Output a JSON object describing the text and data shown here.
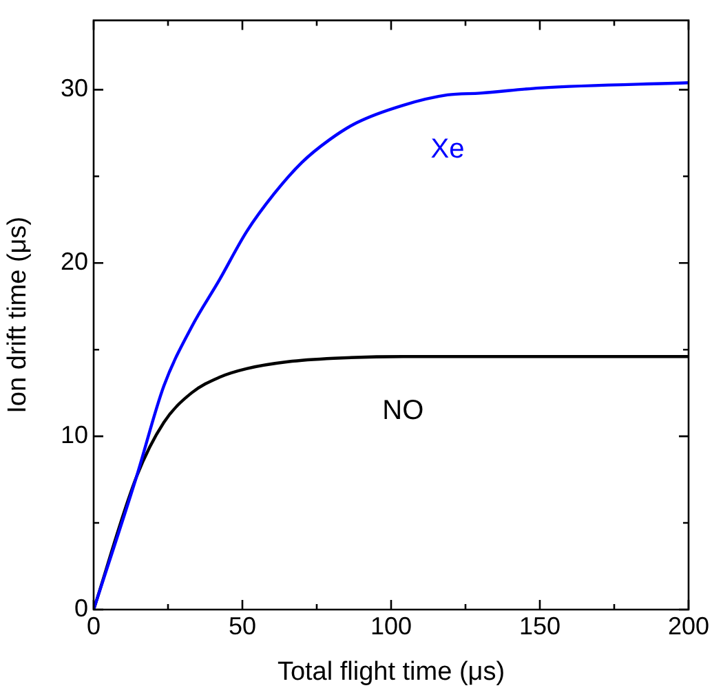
{
  "chart_data": {
    "type": "line",
    "xlabel": "Total flight time (μs)",
    "ylabel": "Ion drift time (μs)",
    "xlim": [
      0,
      200
    ],
    "xticks": [
      0,
      {
        "value": 25,
        "label": null
      },
      50,
      {
        "value": 75,
        "label": null
      },
      100,
      {
        "value": 125,
        "label": null
      },
      150,
      {
        "value": 175,
        "label": null
      },
      200
    ],
    "ylim": [
      0,
      34
    ],
    "yticks": [
      0,
      {
        "value": 5,
        "label": null
      },
      10,
      {
        "value": 15,
        "label": null
      },
      20,
      {
        "value": 25,
        "label": null
      },
      30
    ],
    "grid": false,
    "legend": false,
    "marker": "none",
    "line_style": "solid",
    "series": [
      {
        "name": "Xe",
        "color": "#0000ff",
        "x": [
          0,
          14.4,
          23.6,
          32.9,
          42.2,
          51.4,
          60.7,
          70,
          79.2,
          88.5,
          104,
          119,
          130,
          150,
          200
        ],
        "values": [
          0,
          7.66,
          12.9,
          16.3,
          19.0,
          21.8,
          24.0,
          25.8,
          27.1,
          28.1,
          29.1,
          29.7,
          29.8,
          30.1,
          30.4
        ]
      },
      {
        "name": "NO",
        "color": "#000000",
        "x": [
          0,
          14.4,
          23.6,
          32.9,
          42.2,
          51.4,
          65.3,
          80.8,
          104,
          130,
          150,
          200
        ],
        "values": [
          0,
          7.66,
          10.8,
          12.5,
          13.4,
          13.9,
          14.3,
          14.5,
          14.6,
          14.6,
          14.6,
          14.6
        ]
      }
    ]
  }
}
